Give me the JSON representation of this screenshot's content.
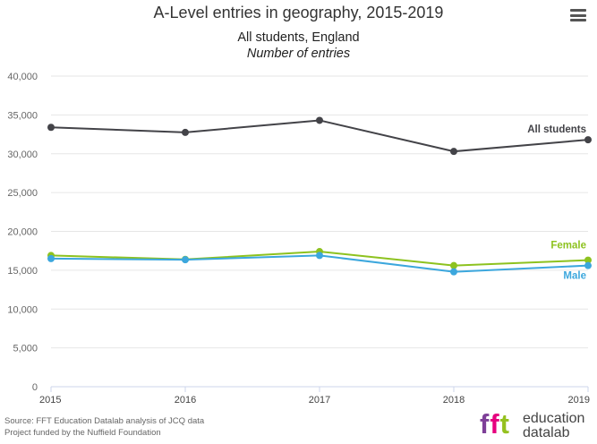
{
  "header": {
    "title": "A-Level entries in geography, 2015-2019",
    "subtitle": "All students, England",
    "units": "Number of entries"
  },
  "footer": {
    "source": "Source: FFT Education Datalab analysis of JCQ data",
    "funding": "Project funded by the Nuffield Foundation"
  },
  "logo": {
    "mark": "fft",
    "word1": "education",
    "word2": "datalab",
    "colors": [
      "#7e3f98",
      "#e6007e",
      "#95c11f"
    ]
  },
  "menu": {
    "icon": "hamburger-menu-icon"
  },
  "chart_data": {
    "type": "line",
    "x": [
      2015,
      2016,
      2017,
      2018,
      2019
    ],
    "x_tick_labels": [
      "2015",
      "2016",
      "2017",
      "2018",
      "2019"
    ],
    "ylim": [
      0,
      40000
    ],
    "y_ticks": [
      0,
      5000,
      10000,
      15000,
      20000,
      25000,
      30000,
      35000,
      40000
    ],
    "y_tick_labels": [
      "0",
      "5,000",
      "10,000",
      "15,000",
      "20,000",
      "25,000",
      "30,000",
      "35,000",
      "40,000"
    ],
    "grid": true,
    "series": [
      {
        "name": "All students",
        "color": "#434348",
        "values": [
          33400,
          32750,
          34300,
          30300,
          31800
        ]
      },
      {
        "name": "Female",
        "color": "#8dc21f",
        "values": [
          16900,
          16400,
          17400,
          15600,
          16300
        ]
      },
      {
        "name": "Male",
        "color": "#3ca7dd",
        "values": [
          16500,
          16350,
          16900,
          14800,
          15600
        ]
      }
    ]
  }
}
